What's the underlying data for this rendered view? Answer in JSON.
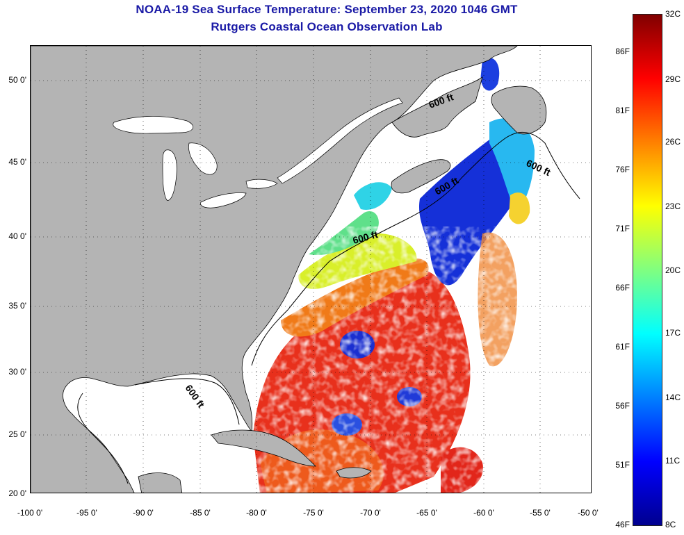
{
  "header": {
    "title": "NOAA-19 Sea Surface Temperature:  September 23, 2020 1046 GMT",
    "subtitle": "Rutgers Coastal Ocean Observation Lab"
  },
  "map": {
    "lat_ticks": [
      "50 0'",
      "45 0'",
      "40 0'",
      "35 0'",
      "30 0'",
      "25 0'",
      "20 0'"
    ],
    "lon_ticks": [
      "-100 0'",
      "-95 0'",
      "-90 0'",
      "-85 0'",
      "-80 0'",
      "-75 0'",
      "-70 0'",
      "-65 0'",
      "-60 0'",
      "-55 0'",
      "-50 0'"
    ],
    "contour_labels": [
      "600 ft",
      "600 ft",
      "600 ft",
      "600 ft",
      "600 ft"
    ],
    "colors": {
      "land": "#b4b4b4",
      "cloud_or_nodata": "#ffffff",
      "coastline": "#000000"
    }
  },
  "colorbar": {
    "fahrenheit_labels": [
      "86F",
      "81F",
      "76F",
      "71F",
      "66F",
      "61F",
      "56F",
      "51F",
      "46F"
    ],
    "celsius_labels": [
      "32C",
      "29C",
      "26C",
      "23C",
      "20C",
      "17C",
      "14C",
      "11C",
      "8C"
    ],
    "colormap": [
      "#00008f",
      "#0000ff",
      "#0080ff",
      "#00ffff",
      "#80ff80",
      "#ffff00",
      "#ff8000",
      "#ff0000",
      "#800000"
    ]
  }
}
